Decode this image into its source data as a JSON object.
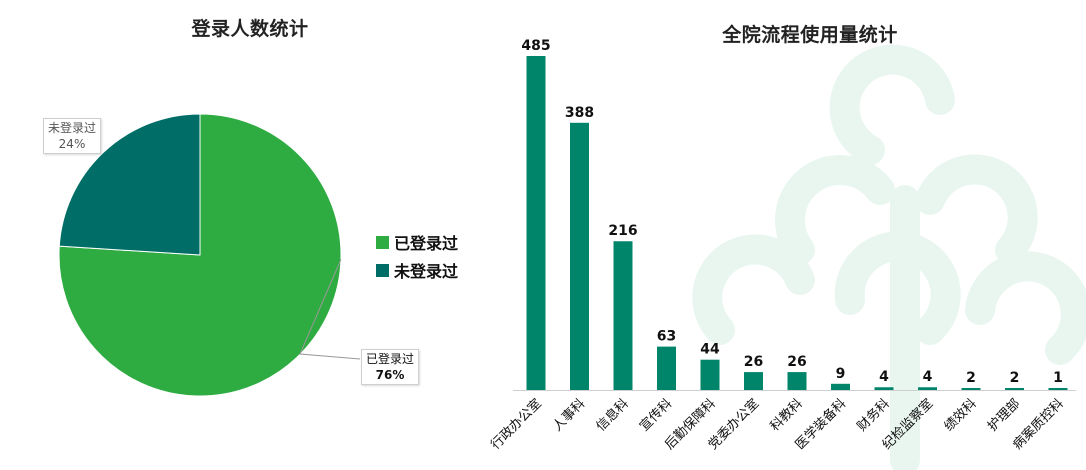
{
  "colors": {
    "logged_in": "#2eac42",
    "not_logged_in": "#006e66",
    "bar": "#00846a",
    "watermark": "#e9f6f0"
  },
  "chart_data": [
    {
      "type": "pie",
      "title": "登录人数统计",
      "slices": [
        {
          "name": "已登录过",
          "value": 76,
          "label": "76%"
        },
        {
          "name": "未登录过",
          "value": 24,
          "label": "24%"
        }
      ],
      "legend_placement": "right"
    },
    {
      "type": "bar",
      "title": "全院流程使用量统计",
      "categories": [
        "行政办公室",
        "人事科",
        "信息科",
        "宣传科",
        "后勤保障科",
        "党委办公室",
        "科教科",
        "医学装备科",
        "财务科",
        "纪检监察室",
        "绩效科",
        "护理部",
        "病案质控科"
      ],
      "values": [
        485,
        388,
        216,
        63,
        44,
        26,
        26,
        9,
        4,
        4,
        2,
        2,
        1
      ],
      "xlabel": "",
      "ylabel": "",
      "ylim": [
        0,
        485
      ],
      "grid": false
    }
  ]
}
